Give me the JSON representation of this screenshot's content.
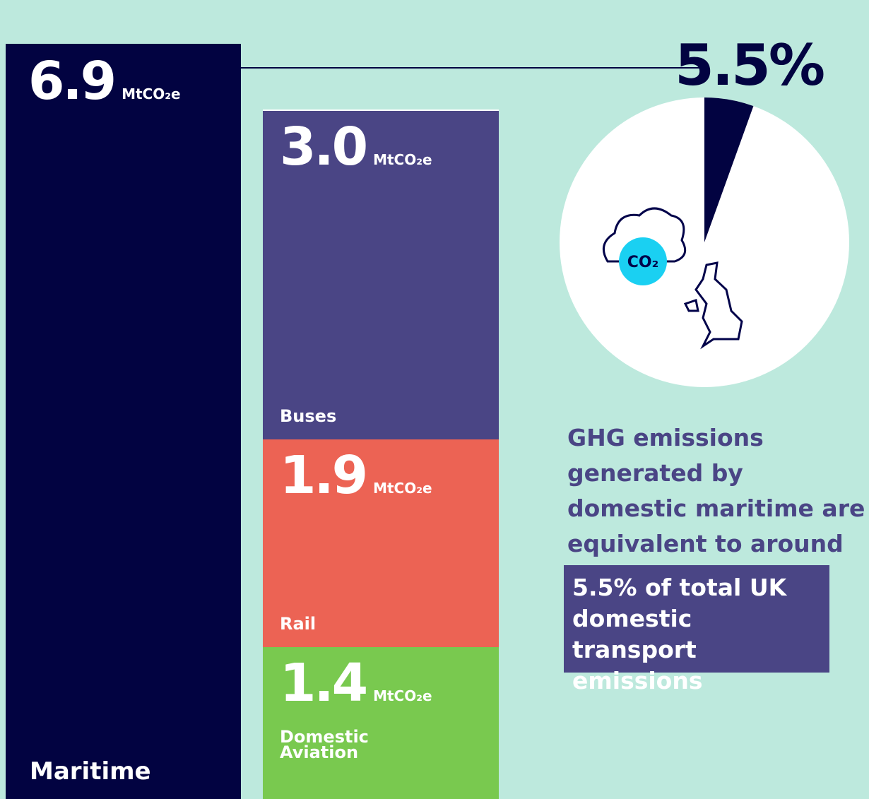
{
  "chart_data": [
    {
      "type": "bar",
      "categories": [
        "Maritime",
        "Domestic Aviation",
        "Rail",
        "Buses"
      ],
      "values": [
        6.9,
        1.4,
        1.9,
        3.0
      ],
      "value_labels": [
        "6.9",
        "1.4",
        "1.9",
        "3.0"
      ],
      "unit": "MtCO₂e",
      "colors": [
        "#020341",
        "#79c94f",
        "#ec6354",
        "#4a4585"
      ]
    },
    {
      "type": "pie",
      "values": [
        5.5
      ],
      "value_labels": [
        "5.5%"
      ],
      "color": "#020341",
      "icon_label": "CO₂",
      "annotation": "GHG emissions generated by domestic maritime are equivalent to around",
      "highlight": "5.5% of total UK domestic transport emissions"
    }
  ]
}
